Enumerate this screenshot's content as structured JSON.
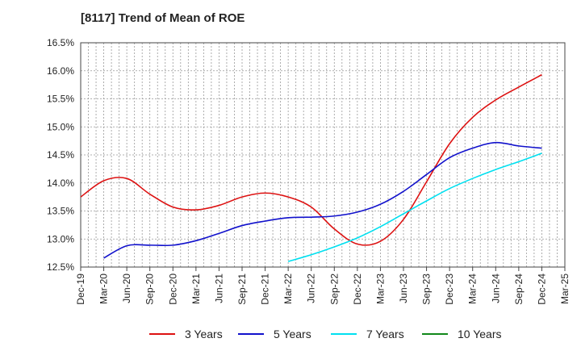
{
  "chart_data": {
    "type": "line",
    "title": "[8117]  Trend of Mean of ROE",
    "x": [
      "Dec-19",
      "Mar-20",
      "Jun-20",
      "Sep-20",
      "Dec-20",
      "Mar-21",
      "Jun-21",
      "Sep-21",
      "Dec-21",
      "Mar-22",
      "Jun-22",
      "Sep-22",
      "Dec-22",
      "Mar-23",
      "Jun-23",
      "Sep-23",
      "Dec-23",
      "Mar-24",
      "Jun-24",
      "Sep-24",
      "Dec-24",
      "Mar-25"
    ],
    "xlabel": "",
    "ylabel": "",
    "ylim": [
      12.5,
      16.5
    ],
    "yticks": [
      "12.5%",
      "13.0%",
      "13.5%",
      "14.0%",
      "14.5%",
      "15.0%",
      "15.5%",
      "16.0%",
      "16.5%"
    ],
    "y_unit": "%",
    "grid": true,
    "legend_position": "bottom",
    "series": [
      {
        "name": "3 Years",
        "color": "#dd1111",
        "values": [
          13.75,
          14.04,
          14.08,
          13.8,
          13.57,
          13.52,
          13.6,
          13.75,
          13.82,
          13.75,
          13.57,
          13.18,
          12.91,
          12.96,
          13.35,
          14.02,
          14.7,
          15.17,
          15.48,
          15.71,
          15.93,
          null
        ]
      },
      {
        "name": "5 Years",
        "color": "#1111cc",
        "values": [
          null,
          12.66,
          12.88,
          12.89,
          12.89,
          12.97,
          13.1,
          13.24,
          13.32,
          13.38,
          13.39,
          13.41,
          13.48,
          13.62,
          13.85,
          14.15,
          14.45,
          14.62,
          14.72,
          14.66,
          14.62,
          null
        ]
      },
      {
        "name": "7 Years",
        "color": "#00e0f0",
        "values": [
          null,
          null,
          null,
          null,
          null,
          null,
          null,
          null,
          null,
          12.6,
          12.72,
          12.86,
          13.02,
          13.22,
          13.45,
          13.68,
          13.9,
          14.08,
          14.24,
          14.38,
          14.53,
          null
        ]
      },
      {
        "name": "10 Years",
        "color": "#11881a",
        "values": [
          null,
          null,
          null,
          null,
          null,
          null,
          null,
          null,
          null,
          null,
          null,
          null,
          null,
          null,
          null,
          null,
          null,
          null,
          null,
          null,
          null,
          null
        ]
      }
    ]
  }
}
